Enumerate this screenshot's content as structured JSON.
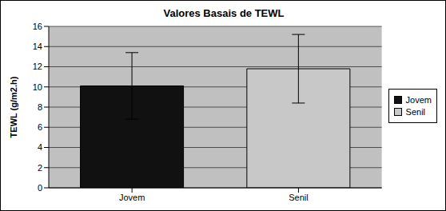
{
  "chart_data": {
    "type": "bar",
    "title": "Valores Basais de TEWL",
    "y_label": "TEWL (g/m2.h)",
    "categories": [
      "Jovem",
      "Senil"
    ],
    "values": [
      10.1,
      11.8
    ],
    "errors": [
      3.3,
      3.4
    ],
    "colors": [
      "#111111",
      "#c8c8c8"
    ],
    "ylim": [
      0,
      16
    ],
    "yticks": [
      0,
      2,
      4,
      6,
      8,
      10,
      12,
      14,
      16
    ],
    "grid": true,
    "legend": "right"
  }
}
